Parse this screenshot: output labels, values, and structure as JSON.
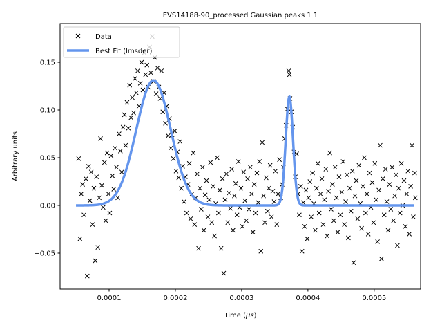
{
  "chart_data": {
    "type": "scatter",
    "title": "EVS14188-90_processed Gaussian peaks 1 1",
    "xlabel": "Time (μs)",
    "xlabel_prefix": "Time (",
    "xlabel_mu": "μ",
    "xlabel_suffix": "s)",
    "ylabel": "Arbitrary units",
    "xlim": [
      2.6e-05,
      0.00057
    ],
    "ylim": [
      -0.0877,
      0.1906
    ],
    "x_ticks": [
      0.0001,
      0.0002,
      0.0003,
      0.0004,
      0.0005
    ],
    "x_tick_labels": [
      "0.0001",
      "0.0002",
      "0.0003",
      "0.0004",
      "0.0005"
    ],
    "y_ticks": [
      -0.05,
      0.0,
      0.05,
      0.1,
      0.15
    ],
    "y_tick_labels": [
      "−0.05",
      "0.00",
      "0.05",
      "0.10",
      "0.15"
    ],
    "grid": false,
    "legend": {
      "placement": "top-left",
      "entries": [
        {
          "label": "Data",
          "marker": "x",
          "color": "#000000"
        },
        {
          "label": "Best Fit (lmsder)",
          "marker": "line",
          "color": "#6495ED"
        }
      ]
    },
    "series": [
      {
        "name": "Data",
        "marker": "x",
        "color": "#000000",
        "points": [
          [
            5.4e-05,
            0.049
          ],
          [
            5.6e-05,
            -0.035
          ],
          [
            5.8e-05,
            0.012
          ],
          [
            6e-05,
            0.022
          ],
          [
            6.2e-05,
            -0.01
          ],
          [
            6.5e-05,
            0.028
          ],
          [
            6.7e-05,
            -0.074
          ],
          [
            6.9e-05,
            0.041
          ],
          [
            7.1e-05,
            0.005
          ],
          [
            7.3e-05,
            0.035
          ],
          [
            7.5e-05,
            -0.02
          ],
          [
            7.7e-05,
            0.018
          ],
          [
            7.9e-05,
            -0.058
          ],
          [
            8.1e-05,
            0.03
          ],
          [
            8.3e-05,
            -0.044
          ],
          [
            8.5e-05,
            0.008
          ],
          [
            8.7e-05,
            0.07
          ],
          [
            8.9e-05,
            0.021
          ],
          [
            9.1e-05,
            -0.002
          ],
          [
            9.3e-05,
            0.045
          ],
          [
            9.5e-05,
            -0.016
          ],
          [
            9.7e-05,
            0.055
          ],
          [
            9.9e-05,
            0.012
          ],
          [
            0.000101,
            -0.008
          ],
          [
            0.000103,
            0.052
          ],
          [
            0.000105,
            0.031
          ],
          [
            0.000107,
            0.017
          ],
          [
            0.000109,
            0.06
          ],
          [
            0.000111,
            0.04
          ],
          [
            0.000113,
            0.008
          ],
          [
            0.000115,
            0.075
          ],
          [
            0.000117,
            0.057
          ],
          [
            0.000119,
            0.035
          ],
          [
            0.000121,
            0.082
          ],
          [
            0.000123,
            0.095
          ],
          [
            0.000125,
            0.063
          ],
          [
            0.000127,
            0.108
          ],
          [
            0.000129,
            0.081
          ],
          [
            0.000131,
            0.126
          ],
          [
            0.000133,
            0.092
          ],
          [
            0.000135,
            0.113
          ],
          [
            0.000137,
            0.097
          ],
          [
            0.000139,
            0.133
          ],
          [
            0.000141,
            0.118
          ],
          [
            0.000143,
            0.141
          ],
          [
            0.000145,
            0.104
          ],
          [
            0.000147,
            0.128
          ],
          [
            0.000149,
            0.15
          ],
          [
            0.000151,
            0.121
          ],
          [
            0.000153,
            0.16
          ],
          [
            0.000155,
            0.137
          ],
          [
            0.000157,
            0.147
          ],
          [
            0.000159,
            0.124
          ],
          [
            0.000161,
            0.166
          ],
          [
            0.000163,
            0.139
          ],
          [
            0.000165,
            0.177
          ],
          [
            0.000167,
            0.13
          ],
          [
            0.000169,
            0.155
          ],
          [
            0.000171,
            0.117
          ],
          [
            0.000173,
            0.144
          ],
          [
            0.000175,
            0.124
          ],
          [
            0.000177,
            0.112
          ],
          [
            0.000179,
            0.141
          ],
          [
            0.000181,
            0.098
          ],
          [
            0.000183,
            0.118
          ],
          [
            0.000185,
            0.086
          ],
          [
            0.000187,
            0.104
          ],
          [
            0.000189,
            0.073
          ],
          [
            0.000191,
            0.091
          ],
          [
            0.000193,
            0.06
          ],
          [
            0.000195,
            0.074
          ],
          [
            0.000197,
            0.049
          ],
          [
            0.000199,
            0.078
          ],
          [
            0.000201,
            0.036
          ],
          [
            0.000203,
            0.056
          ],
          [
            0.000205,
            0.029
          ],
          [
            0.000207,
            0.067
          ],
          [
            0.000209,
            0.018
          ],
          [
            0.000211,
            0.041
          ],
          [
            0.000213,
            0.004
          ],
          [
            0.000215,
            0.03
          ],
          [
            0.000217,
            -0.008
          ],
          [
            0.000219,
            0.022
          ],
          [
            0.000221,
            0.044
          ],
          [
            0.000223,
            -0.014
          ],
          [
            0.000225,
            0.012
          ],
          [
            0.000227,
            0.055
          ],
          [
            0.000229,
            -0.02
          ],
          [
            0.000231,
            0.008
          ],
          [
            0.000233,
            0.033
          ],
          [
            0.000235,
            -0.045
          ],
          [
            0.000237,
            0.018
          ],
          [
            0.000239,
            -0.004
          ],
          [
            0.000241,
            0.04
          ],
          [
            0.000243,
            -0.026
          ],
          [
            0.000245,
            0.011
          ],
          [
            0.000247,
            0.026
          ],
          [
            0.000249,
            -0.012
          ],
          [
            0.000251,
            0.006
          ],
          [
            0.000253,
            0.045
          ],
          [
            0.000255,
            -0.018
          ],
          [
            0.000257,
            0.02
          ],
          [
            0.000259,
            -0.032
          ],
          [
            0.000261,
            0.002
          ],
          [
            0.000263,
            0.05
          ],
          [
            0.000265,
            -0.008
          ],
          [
            0.000267,
            0.016
          ],
          [
            0.000269,
            -0.045
          ],
          [
            0.000271,
            0.028
          ],
          [
            0.000273,
            -0.071
          ],
          [
            0.000275,
            0.006
          ],
          [
            0.000277,
            0.033
          ],
          [
            0.000279,
            -0.018
          ],
          [
            0.000281,
            0.013
          ],
          [
            0.000283,
            -0.003
          ],
          [
            0.000285,
            0.038
          ],
          [
            0.000287,
            -0.026
          ],
          [
            0.000289,
            0.01
          ],
          [
            0.000291,
            0.023
          ],
          [
            0.000293,
            -0.01
          ],
          [
            0.000295,
            0.046
          ],
          [
            0.000297,
            -0.002
          ],
          [
            0.000299,
            0.018
          ],
          [
            0.000301,
            -0.022
          ],
          [
            0.000303,
            0.035
          ],
          [
            0.000305,
            0.005
          ],
          [
            0.000307,
            -0.016
          ],
          [
            0.000309,
            0.028
          ],
          [
            0.000311,
            -0.004
          ],
          [
            0.000313,
            0.04
          ],
          [
            0.000315,
            0.012
          ],
          [
            0.000317,
            -0.028
          ],
          [
            0.000319,
            0.022
          ],
          [
            0.000321,
            -0.008
          ],
          [
            0.000323,
            0.034
          ],
          [
            0.000325,
            0.003
          ],
          [
            0.000327,
            0.046
          ],
          [
            0.000329,
            -0.048
          ],
          [
            0.000331,
            0.066
          ],
          [
            0.000333,
            0.01
          ],
          [
            0.000335,
            -0.018
          ],
          [
            0.000337,
            0.029
          ],
          [
            0.000339,
            -0.006
          ],
          [
            0.000341,
            0.018
          ],
          [
            0.000343,
            0.042
          ],
          [
            0.000345,
            -0.012
          ],
          [
            0.000347,
            0.015
          ],
          [
            0.000349,
            0.004
          ],
          [
            0.000351,
            0.036
          ],
          [
            0.000353,
            -0.02
          ],
          [
            0.000355,
            0.012
          ],
          [
            0.000357,
            0.048
          ],
          [
            0.000359,
            0.008
          ],
          [
            0.000361,
            0.022
          ],
          [
            0.000363,
            0.04
          ],
          [
            0.000365,
            0.07
          ],
          [
            0.000367,
            0.084
          ],
          [
            0.000369,
            0.101
          ],
          [
            0.000371,
            0.141
          ],
          [
            0.000372,
            0.137
          ],
          [
            0.000373,
            0.112
          ],
          [
            0.000375,
            0.098
          ],
          [
            0.000377,
            0.082
          ],
          [
            0.000379,
            0.056
          ],
          [
            0.000381,
            0.03
          ],
          [
            0.000383,
            0.054
          ],
          [
            0.000385,
            0.012
          ],
          [
            0.000387,
            -0.01
          ],
          [
            0.000389,
            0.02
          ],
          [
            0.000391,
            -0.048
          ],
          [
            0.000393,
            0.003
          ],
          [
            0.000395,
            -0.022
          ],
          [
            0.000397,
            0.016
          ],
          [
            0.000399,
            -0.035
          ],
          [
            0.000401,
            0.008
          ],
          [
            0.000403,
            0.025
          ],
          [
            0.000405,
            -0.012
          ],
          [
            0.000407,
            0.034
          ],
          [
            0.000409,
            0.002
          ],
          [
            0.000411,
            -0.026
          ],
          [
            0.000413,
            0.018
          ],
          [
            0.000415,
            0.044
          ],
          [
            0.000417,
            -0.008
          ],
          [
            0.000419,
            0.012
          ],
          [
            0.000421,
            0.028
          ],
          [
            0.000423,
            -0.02
          ],
          [
            0.000425,
            0.006
          ],
          [
            0.000427,
            0.038
          ],
          [
            0.000429,
            -0.032
          ],
          [
            0.000431,
            0.015
          ],
          [
            0.000433,
            0.055
          ],
          [
            0.000435,
            -0.004
          ],
          [
            0.000437,
            0.022
          ],
          [
            0.000439,
            -0.016
          ],
          [
            0.000441,
            0.04
          ],
          [
            0.000443,
            0.008
          ],
          [
            0.000445,
            -0.028
          ],
          [
            0.000447,
            0.03
          ],
          [
            0.000449,
            -0.01
          ],
          [
            0.000451,
            0.014
          ],
          [
            0.000453,
            0.046
          ],
          [
            0.000455,
            -0.02
          ],
          [
            0.000457,
            0.004
          ],
          [
            0.000459,
            0.032
          ],
          [
            0.000461,
            -0.034
          ],
          [
            0.000463,
            0.018
          ],
          [
            0.000465,
            -0.006
          ],
          [
            0.000467,
            0.036
          ],
          [
            0.000469,
            -0.06
          ],
          [
            0.000471,
            0.01
          ],
          [
            0.000473,
            0.026
          ],
          [
            0.000475,
            -0.014
          ],
          [
            0.000477,
            0.042
          ],
          [
            0.000479,
            0.002
          ],
          [
            0.000481,
            -0.024
          ],
          [
            0.000483,
            0.02
          ],
          [
            0.000485,
            0.05
          ],
          [
            0.000487,
            -0.008
          ],
          [
            0.000489,
            0.012
          ],
          [
            0.000491,
            -0.03
          ],
          [
            0.000493,
            0.034
          ],
          [
            0.000495,
            -0.002
          ],
          [
            0.000497,
            0.024
          ],
          [
            0.000499,
            -0.018
          ],
          [
            0.000501,
            0.044
          ],
          [
            0.000503,
            0.006
          ],
          [
            0.000505,
            -0.038
          ],
          [
            0.000507,
            0.016
          ],
          [
            0.000509,
            0.063
          ],
          [
            0.000511,
            -0.056
          ],
          [
            0.000513,
            0.028
          ],
          [
            0.000515,
            -0.01
          ],
          [
            0.000517,
            0.038
          ],
          [
            0.000519,
            0.004
          ],
          [
            0.000521,
            -0.026
          ],
          [
            0.000523,
            0.022
          ],
          [
            0.000525,
            -0.004
          ],
          [
            0.000527,
            0.04
          ],
          [
            0.000529,
            -0.016
          ],
          [
            0.000531,
            0.01
          ],
          [
            0.000533,
            0.032
          ],
          [
            0.000535,
            -0.042
          ],
          [
            0.000537,
            0.018
          ],
          [
            0.000539,
            -0.008
          ],
          [
            0.000541,
            0.044
          ],
          [
            0.000543,
            0.0
          ],
          [
            0.000545,
            0.026
          ],
          [
            0.000547,
            -0.022
          ],
          [
            0.000549,
            0.012
          ],
          [
            0.000551,
            0.036
          ],
          [
            0.000553,
            -0.03
          ],
          [
            0.000555,
            0.02
          ],
          [
            0.000557,
            0.063
          ],
          [
            0.000559,
            -0.012
          ],
          [
            0.000561,
            0.034
          ],
          [
            0.000562,
            0.008
          ]
        ]
      },
      {
        "name": "Best Fit (lmsder)",
        "marker": "line",
        "color": "#6495ED",
        "model": "sum of two Gaussians",
        "x_range": [
          5e-05,
          0.00056
        ],
        "peaks": [
          {
            "center": 0.000167,
            "amplitude": 0.131,
            "sigma": 2.6e-05
          },
          {
            "center": 0.000372,
            "amplitude": 0.114,
            "sigma": 5.5e-06
          }
        ]
      }
    ]
  }
}
